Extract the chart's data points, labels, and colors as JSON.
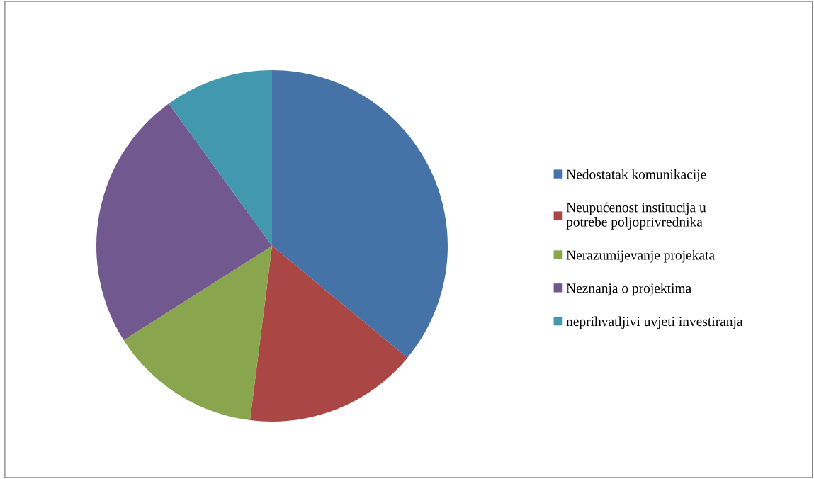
{
  "chart_data": {
    "type": "pie",
    "categories": [
      "Nedostatak komunikacije",
      "Neupućenost institucija u\npotrebe poljoprivrednika",
      "Nerazumijevanje projekata",
      "Neznanja o projektima",
      "neprihvatljivi uvjeti investiranja"
    ],
    "values": [
      36,
      16,
      14,
      24,
      10
    ],
    "colors": [
      "#4572a7",
      "#aa4643",
      "#89a54e",
      "#71588f",
      "#4198af"
    ],
    "legend": "right"
  }
}
